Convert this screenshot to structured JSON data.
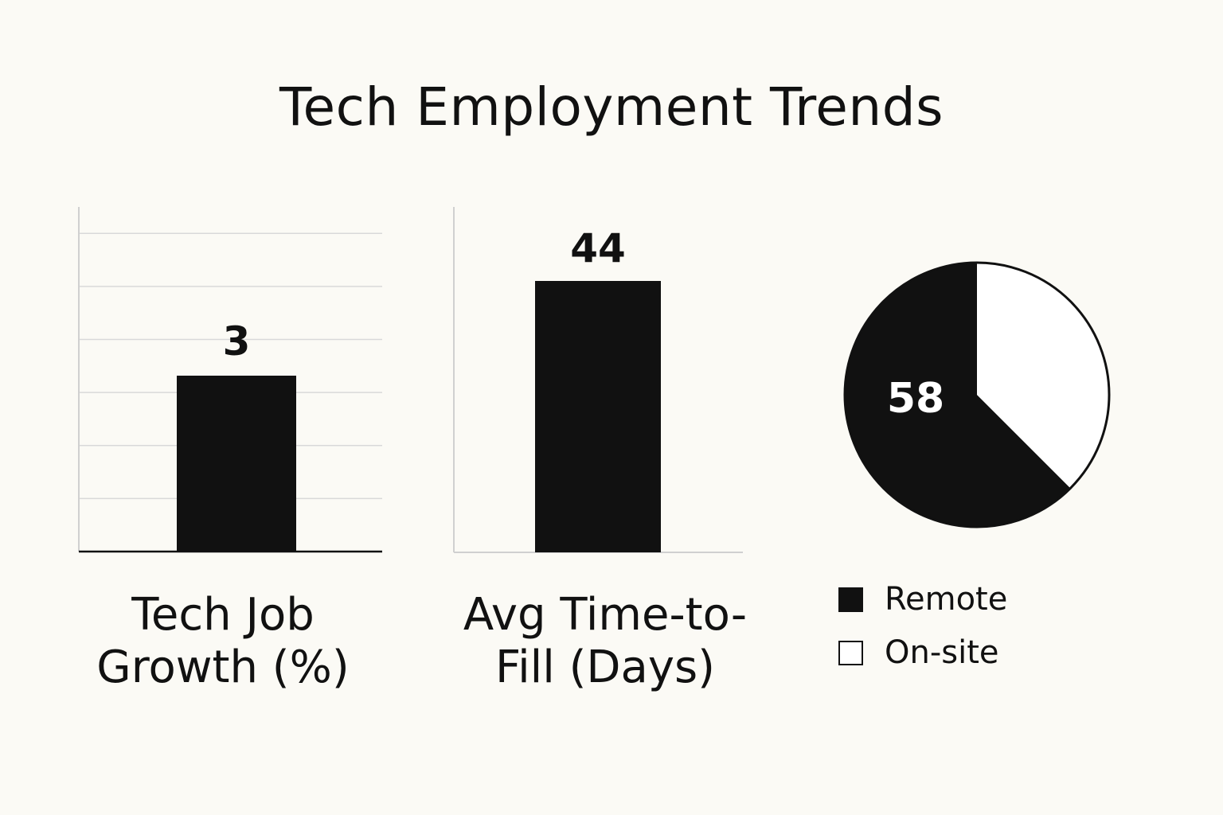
{
  "title": "Tech Employment Trends",
  "colors": {
    "ink": "#111111",
    "background": "#fbfaf5",
    "grid": "#d9d9d9",
    "white": "#ffffff"
  },
  "chart_data": [
    {
      "type": "bar",
      "title": "",
      "xlabel": "Tech Job Growth (%)",
      "ylabel": "",
      "categories": [
        ""
      ],
      "values": [
        3
      ],
      "data_labels": [
        "3"
      ],
      "ylim": [
        0,
        6.5
      ],
      "grid": true,
      "gridlines": [
        1,
        2,
        3,
        4,
        5,
        6
      ],
      "label_lines": [
        "Tech Job",
        "Growth (%)"
      ]
    },
    {
      "type": "bar",
      "title": "",
      "xlabel": "Avg Time-to-Fill (Days)",
      "ylabel": "",
      "categories": [
        ""
      ],
      "values": [
        44
      ],
      "data_labels": [
        "44"
      ],
      "ylim": [
        0,
        56
      ],
      "grid": false,
      "label_lines": [
        "Avg Time-to-",
        "Fill (Days)"
      ]
    },
    {
      "type": "pie",
      "title": "",
      "slices": [
        {
          "name": "Remote",
          "value": 62.5,
          "color": "#111111"
        },
        {
          "name": "On-site",
          "value": 37.5,
          "color": "#ffffff"
        }
      ],
      "center_label": "58",
      "legend_position": "bottom"
    }
  ]
}
